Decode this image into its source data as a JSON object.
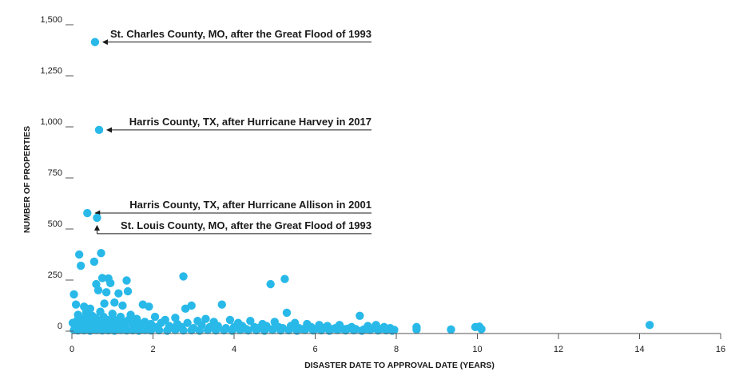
{
  "chart_data": {
    "type": "scatter",
    "title": "",
    "xlabel": "DISASTER DATE TO APPROVAL DATE (YEARS)",
    "ylabel": "NUMBER OF PROPERTIES",
    "xlim": [
      0,
      16
    ],
    "ylim": [
      0,
      1500
    ],
    "xticks": [
      0,
      2,
      4,
      6,
      8,
      10,
      12,
      14,
      16
    ],
    "xtick_labels": [
      "0",
      "2",
      "4",
      "6",
      "8",
      "10",
      "12",
      "14",
      "16"
    ],
    "yticks": [
      0,
      250,
      500,
      750,
      1000,
      1250,
      1500
    ],
    "ytick_labels": [
      "0",
      "250",
      "500",
      "750",
      "1,000",
      "1,250",
      "1,500"
    ],
    "grid": false,
    "colors": {
      "points": "#29b9e9",
      "text": "#1a1a1a",
      "axis": "#555555"
    },
    "points": [
      [
        0.57,
        1415
      ],
      [
        0.67,
        985
      ],
      [
        0.38,
        578
      ],
      [
        0.62,
        555
      ],
      [
        0.18,
        375
      ],
      [
        0.72,
        382
      ],
      [
        0.55,
        340
      ],
      [
        0.22,
        320
      ],
      [
        0.05,
        180
      ],
      [
        0.6,
        230
      ],
      [
        0.75,
        260
      ],
      [
        0.9,
        258
      ],
      [
        0.95,
        235
      ],
      [
        1.35,
        248
      ],
      [
        1.38,
        195
      ],
      [
        2.75,
        268
      ],
      [
        5.25,
        255
      ],
      [
        4.9,
        230
      ],
      [
        0.65,
        200
      ],
      [
        0.85,
        190
      ],
      [
        1.15,
        185
      ],
      [
        0.1,
        130
      ],
      [
        0.3,
        120
      ],
      [
        0.45,
        110
      ],
      [
        0.8,
        135
      ],
      [
        1.05,
        140
      ],
      [
        1.25,
        125
      ],
      [
        1.75,
        130
      ],
      [
        1.9,
        120
      ],
      [
        2.95,
        125
      ],
      [
        3.7,
        130
      ],
      [
        2.8,
        110
      ],
      [
        5.3,
        90
      ],
      [
        7.1,
        75
      ],
      [
        0.15,
        80
      ],
      [
        0.35,
        90
      ],
      [
        0.5,
        75
      ],
      [
        0.7,
        95
      ],
      [
        1.0,
        85
      ],
      [
        1.2,
        70
      ],
      [
        1.45,
        80
      ],
      [
        1.6,
        60
      ],
      [
        2.05,
        70
      ],
      [
        2.3,
        55
      ],
      [
        2.55,
        65
      ],
      [
        3.1,
        50
      ],
      [
        3.3,
        60
      ],
      [
        3.5,
        45
      ],
      [
        3.9,
        55
      ],
      [
        4.1,
        40
      ],
      [
        4.4,
        50
      ],
      [
        4.7,
        35
      ],
      [
        5.0,
        45
      ],
      [
        5.5,
        40
      ],
      [
        5.8,
        35
      ],
      [
        6.1,
        30
      ],
      [
        6.3,
        25
      ],
      [
        6.6,
        30
      ],
      [
        6.9,
        20
      ],
      [
        7.3,
        25
      ],
      [
        7.5,
        30
      ],
      [
        7.7,
        20
      ],
      [
        7.85,
        15
      ],
      [
        8.5,
        20
      ],
      [
        8.5,
        8
      ],
      [
        9.35,
        8
      ],
      [
        9.95,
        20
      ],
      [
        10.05,
        22
      ],
      [
        10.1,
        10
      ],
      [
        14.25,
        30
      ],
      [
        0.02,
        40
      ],
      [
        0.08,
        20
      ],
      [
        0.12,
        50
      ],
      [
        0.2,
        10
      ],
      [
        0.25,
        35
      ],
      [
        0.28,
        60
      ],
      [
        0.4,
        25
      ],
      [
        0.42,
        55
      ],
      [
        0.48,
        15
      ],
      [
        0.52,
        45
      ],
      [
        0.58,
        65
      ],
      [
        0.62,
        20
      ],
      [
        0.68,
        50
      ],
      [
        0.74,
        30
      ],
      [
        0.78,
        70
      ],
      [
        0.82,
        15
      ],
      [
        0.88,
        55
      ],
      [
        0.92,
        40
      ],
      [
        0.98,
        25
      ],
      [
        1.02,
        60
      ],
      [
        1.08,
        35
      ],
      [
        1.12,
        15
      ],
      [
        1.18,
        50
      ],
      [
        1.22,
        30
      ],
      [
        1.28,
        45
      ],
      [
        1.32,
        20
      ],
      [
        1.4,
        55
      ],
      [
        1.5,
        35
      ],
      [
        1.55,
        20
      ],
      [
        1.65,
        40
      ],
      [
        1.7,
        15
      ],
      [
        1.8,
        45
      ],
      [
        1.85,
        25
      ],
      [
        1.95,
        35
      ],
      [
        2.1,
        20
      ],
      [
        2.2,
        40
      ],
      [
        2.4,
        25
      ],
      [
        2.5,
        15
      ],
      [
        2.6,
        35
      ],
      [
        2.7,
        20
      ],
      [
        2.85,
        40
      ],
      [
        3.0,
        15
      ],
      [
        3.2,
        30
      ],
      [
        3.4,
        20
      ],
      [
        3.6,
        25
      ],
      [
        3.8,
        15
      ],
      [
        4.0,
        20
      ],
      [
        4.2,
        25
      ],
      [
        4.3,
        10
      ],
      [
        4.5,
        20
      ],
      [
        4.6,
        15
      ],
      [
        4.8,
        25
      ],
      [
        4.95,
        10
      ],
      [
        5.1,
        20
      ],
      [
        5.2,
        15
      ],
      [
        5.4,
        25
      ],
      [
        5.6,
        15
      ],
      [
        5.7,
        10
      ],
      [
        5.9,
        20
      ],
      [
        6.0,
        10
      ],
      [
        6.2,
        15
      ],
      [
        6.4,
        10
      ],
      [
        6.5,
        15
      ],
      [
        6.7,
        10
      ],
      [
        6.8,
        12
      ],
      [
        7.0,
        10
      ],
      [
        7.2,
        8
      ],
      [
        7.4,
        12
      ],
      [
        7.6,
        10
      ],
      [
        7.8,
        8
      ],
      [
        7.95,
        6
      ],
      [
        0.05,
        5
      ],
      [
        0.15,
        3
      ],
      [
        0.3,
        4
      ],
      [
        0.45,
        2
      ],
      [
        0.6,
        5
      ],
      [
        0.75,
        3
      ],
      [
        0.9,
        4
      ],
      [
        1.05,
        2
      ],
      [
        1.2,
        5
      ],
      [
        1.35,
        3
      ],
      [
        1.5,
        4
      ],
      [
        1.65,
        2
      ],
      [
        1.8,
        5
      ],
      [
        1.95,
        3
      ],
      [
        2.15,
        4
      ],
      [
        2.35,
        2
      ],
      [
        2.55,
        5
      ],
      [
        2.75,
        3
      ],
      [
        2.95,
        4
      ],
      [
        3.15,
        2
      ],
      [
        3.35,
        5
      ],
      [
        3.55,
        3
      ],
      [
        3.75,
        4
      ],
      [
        3.95,
        2
      ],
      [
        4.15,
        5
      ],
      [
        4.35,
        3
      ],
      [
        4.55,
        4
      ],
      [
        4.75,
        2
      ],
      [
        4.95,
        5
      ],
      [
        5.15,
        3
      ],
      [
        5.35,
        4
      ],
      [
        5.55,
        2
      ],
      [
        5.75,
        5
      ],
      [
        5.95,
        3
      ],
      [
        6.15,
        4
      ],
      [
        6.35,
        2
      ],
      [
        6.55,
        5
      ],
      [
        6.75,
        3
      ],
      [
        6.95,
        4
      ],
      [
        7.15,
        2
      ],
      [
        7.35,
        5
      ],
      [
        7.55,
        3
      ],
      [
        7.75,
        4
      ],
      [
        7.9,
        2
      ]
    ],
    "annotations": [
      {
        "text": "St. Charles County, MO, after the Great Flood of 1993",
        "x": 0.57,
        "y": 1415,
        "arrow": "left"
      },
      {
        "text": "Harris County, TX, after Hurricane Harvey in 2017",
        "x": 0.67,
        "y": 985,
        "arrow": "left"
      },
      {
        "text": "Harris County, TX, after Hurricane Allison in 2001",
        "x": 0.38,
        "y": 578,
        "arrow": "left"
      },
      {
        "text": "St. Louis County, MO, after the Great Flood of 1993",
        "x": 0.62,
        "y": 555,
        "arrow": "up"
      }
    ]
  }
}
